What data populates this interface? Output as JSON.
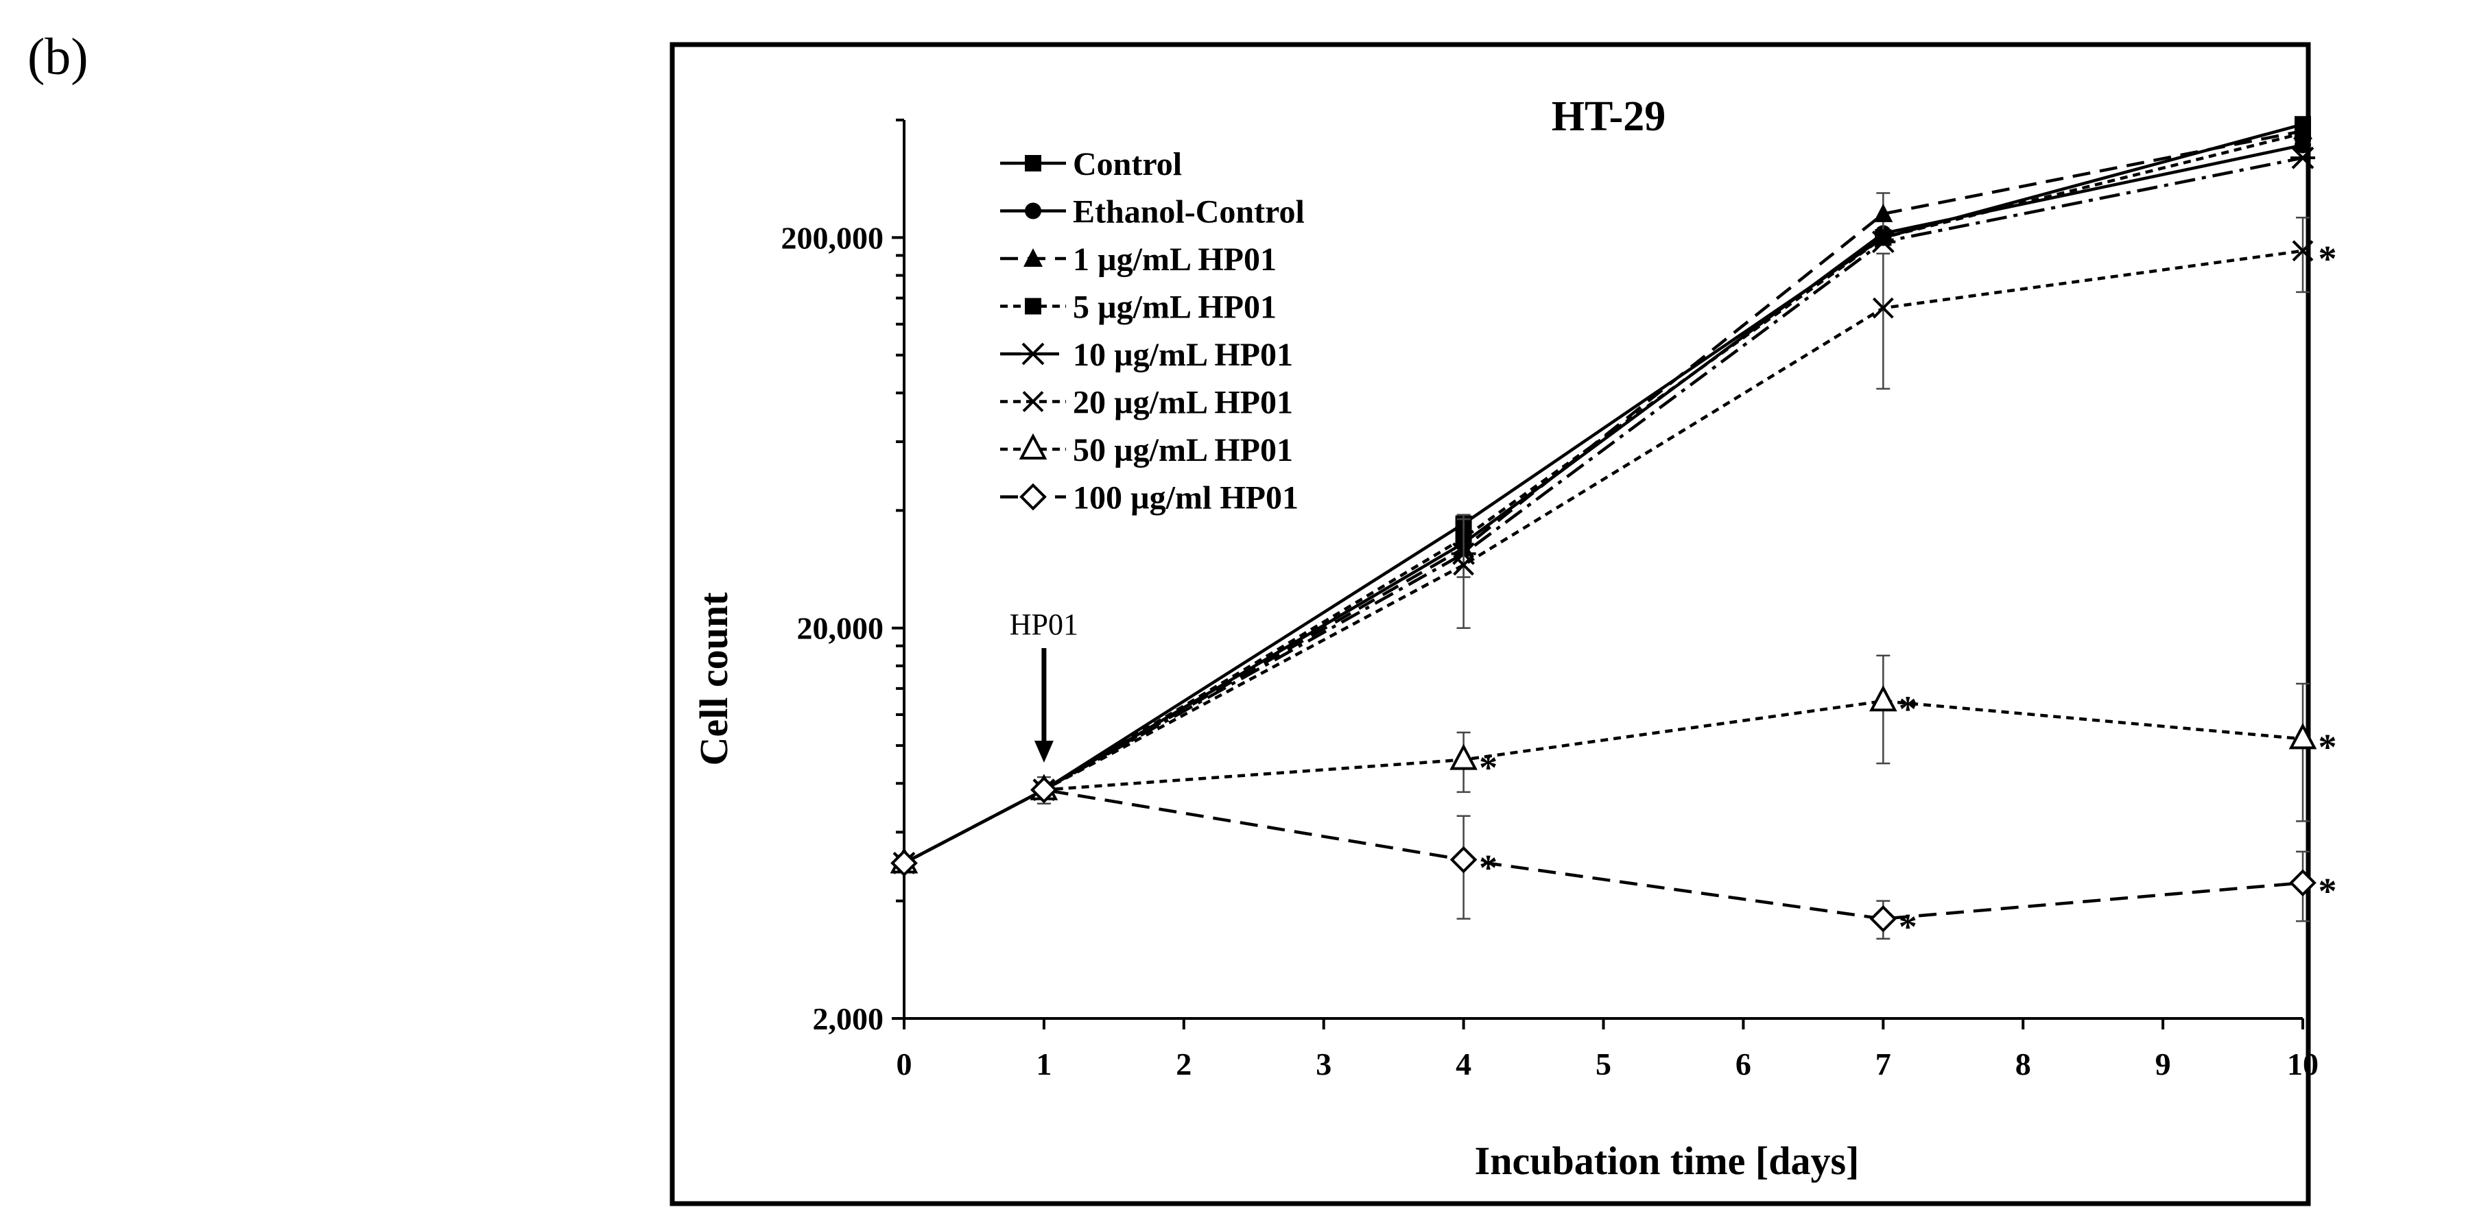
{
  "panel_label": "(b)",
  "chart_data": {
    "type": "line",
    "title": "HT-29",
    "xlabel": "Incubation time [days]",
    "ylabel": "Cell count",
    "yscale": "log",
    "xlim": [
      0,
      10
    ],
    "ylim": [
      2000,
      400000
    ],
    "x_ticks": [
      0,
      1,
      2,
      3,
      4,
      5,
      6,
      7,
      8,
      9,
      10
    ],
    "x_tick_labels": [
      "0",
      "1",
      "2",
      "3",
      "4",
      "5",
      "6",
      "7",
      "8",
      "9",
      "10"
    ],
    "y_ticks": [
      2000,
      20000,
      200000
    ],
    "y_tick_labels": [
      "2,000",
      "20,000",
      "200,000"
    ],
    "legend_position": "top-left",
    "annotation": {
      "text": "HP01",
      "x": 1
    },
    "significance_marker": "*",
    "series": [
      {
        "name": "Control",
        "dash": "solid",
        "marker": "filled-square",
        "x": [
          0,
          1,
          4,
          7,
          10
        ],
        "y": [
          5000,
          7700,
          37000,
          200000,
          390000
        ],
        "err": [
          0,
          0,
          0,
          0,
          0
        ],
        "sig": [
          false,
          false,
          false,
          false,
          false
        ]
      },
      {
        "name": "Ethanol-Control",
        "dash": "solid",
        "marker": "filled-circle",
        "x": [
          0,
          1,
          4,
          7,
          10
        ],
        "y": [
          5000,
          7700,
          33000,
          205000,
          345000
        ],
        "err": [
          0,
          0,
          6000,
          0,
          0
        ],
        "sig": [
          false,
          false,
          false,
          false,
          false
        ]
      },
      {
        "name": "1 µg/mL HP01",
        "dash": "long",
        "marker": "filled-triangle",
        "x": [
          0,
          1,
          4,
          7,
          10
        ],
        "y": [
          5000,
          7700,
          32000,
          230000,
          375000
        ],
        "err": [
          0,
          0,
          0,
          30000,
          0
        ],
        "sig": [
          false,
          false,
          false,
          false,
          false
        ]
      },
      {
        "name": "5 µg/mL HP01",
        "dash": "short",
        "marker": "filled-square",
        "x": [
          0,
          1,
          4,
          7,
          10
        ],
        "y": [
          5000,
          7700,
          34000,
          200000,
          370000
        ],
        "err": [
          0,
          0,
          0,
          0,
          0
        ],
        "sig": [
          false,
          false,
          false,
          false,
          false
        ]
      },
      {
        "name": "10 µg/mL HP01",
        "dash": "dashdot",
        "marker": "asterisk",
        "x": [
          0,
          1,
          4,
          7,
          10
        ],
        "y": [
          5000,
          7700,
          31000,
          195000,
          320000
        ],
        "err": [
          0,
          0,
          0,
          0,
          0
        ],
        "sig": [
          false,
          false,
          false,
          false,
          false
        ]
      },
      {
        "name": "20 µg/mL HP01",
        "dash": "short",
        "marker": "x-cross",
        "x": [
          0,
          1,
          4,
          7,
          10
        ],
        "y": [
          5000,
          7700,
          29000,
          132000,
          185000
        ],
        "err": [
          0,
          0,
          9000,
          50000,
          40000
        ],
        "sig": [
          false,
          false,
          false,
          false,
          true
        ]
      },
      {
        "name": "50 µg/mL HP01",
        "dash": "short",
        "marker": "open-triangle",
        "x": [
          0,
          1,
          4,
          7,
          10
        ],
        "y": [
          5000,
          7700,
          9200,
          13000,
          10400
        ],
        "err": [
          0,
          600,
          1600,
          4000,
          4000
        ],
        "sig": [
          false,
          false,
          true,
          true,
          true
        ]
      },
      {
        "name": "100 µg/ml HP01",
        "dash": "long",
        "marker": "open-diamond",
        "x": [
          0,
          1,
          4,
          7,
          10
        ],
        "y": [
          5000,
          7700,
          5100,
          3600,
          4450
        ],
        "err": [
          0,
          0,
          1500,
          400,
          900
        ],
        "sig": [
          false,
          false,
          true,
          true,
          true
        ]
      }
    ]
  }
}
